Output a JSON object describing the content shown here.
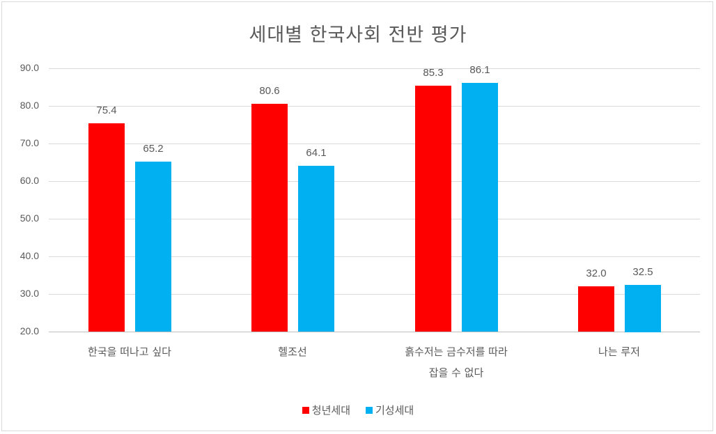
{
  "chart_data": {
    "type": "bar",
    "title": "세대별 한국사회 전반 평가",
    "xlabel": "",
    "ylabel": "",
    "ylim": [
      20,
      90
    ],
    "yticks": [
      "20.0",
      "30.0",
      "40.0",
      "50.0",
      "60.0",
      "70.0",
      "80.0",
      "90.0"
    ],
    "grid": true,
    "legend_position": "bottom",
    "categories": [
      "한국을 떠나고 싶다",
      "헬조선",
      "흙수저는 금수저를 따라 잡을 수 없다",
      "나는 루저"
    ],
    "category_lines": [
      [
        "한국을 떠나고 싶다"
      ],
      [
        "헬조선"
      ],
      [
        "흙수저는 금수저를 따라",
        "잡을 수 없다"
      ],
      [
        "나는 루저"
      ]
    ],
    "series": [
      {
        "name": "청년세대",
        "color": "#ff0000",
        "values": [
          75.4,
          80.6,
          85.3,
          32.0
        ],
        "labels": [
          "75.4",
          "80.6",
          "85.3",
          "32.0"
        ]
      },
      {
        "name": "기성세대",
        "color": "#00b0f0",
        "values": [
          65.2,
          64.1,
          86.1,
          32.5
        ],
        "labels": [
          "65.2",
          "64.1",
          "86.1",
          "32.5"
        ]
      }
    ]
  }
}
